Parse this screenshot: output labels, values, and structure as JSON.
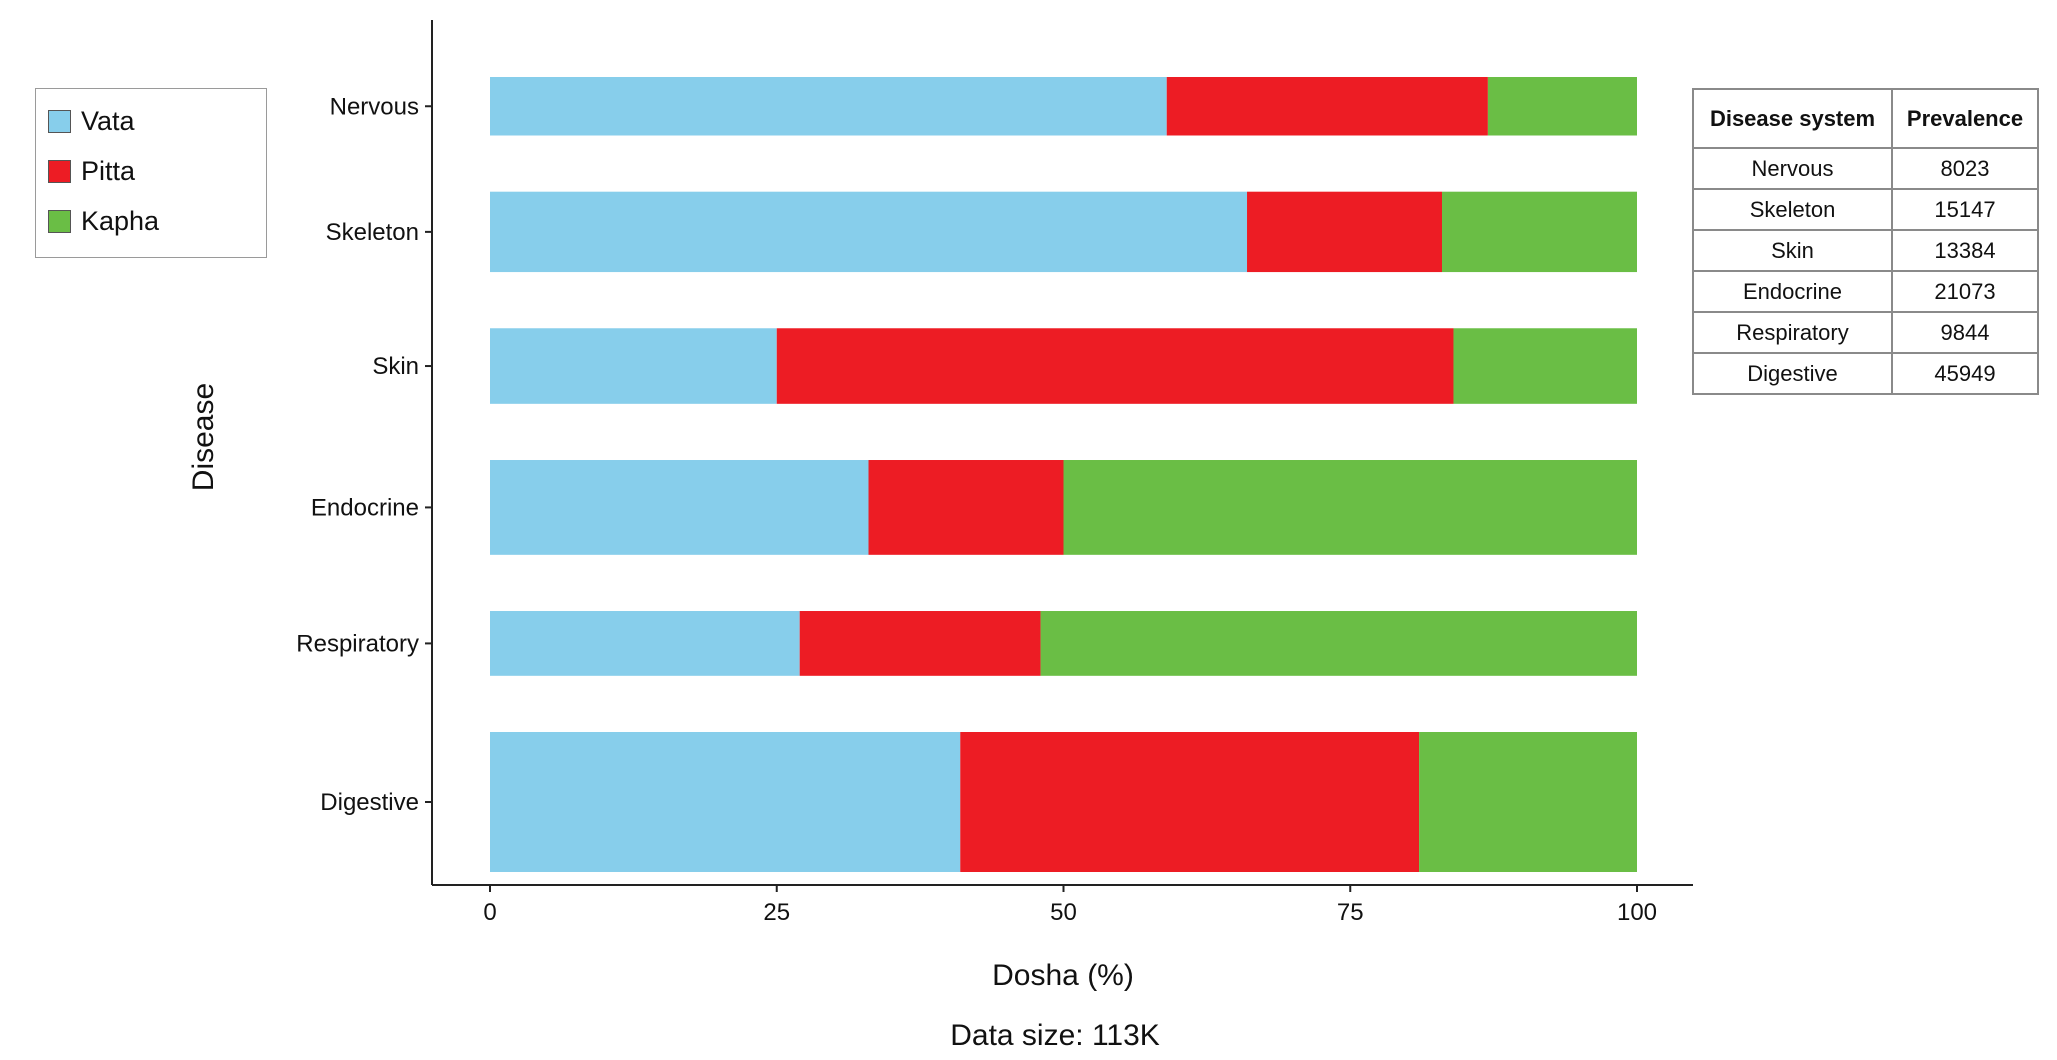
{
  "chart_data": {
    "type": "bar",
    "orientation": "horizontal",
    "stacked": true,
    "categories": [
      "Nervous",
      "Skeleton",
      "Skin",
      "Endocrine",
      "Respiratory",
      "Digestive"
    ],
    "series": [
      {
        "name": "Vata",
        "color": "#87ceeb",
        "values": [
          59,
          66,
          25,
          33,
          27,
          41
        ]
      },
      {
        "name": "Pitta",
        "color": "#ed1c24",
        "values": [
          28,
          17,
          59,
          17,
          21,
          40
        ]
      },
      {
        "name": "Kapha",
        "color": "#6abe45",
        "values": [
          13,
          17,
          16,
          50,
          52,
          19
        ]
      }
    ],
    "xlabel": "Dosha (%)",
    "ylabel": "Disease",
    "xlim": [
      0,
      100
    ],
    "xticks": [
      0,
      25,
      50,
      75,
      100
    ],
    "bar_weight": [
      8023,
      15147,
      13384,
      21073,
      9844,
      45949
    ],
    "caption": "Data size: 113K",
    "legend_position": "top-left",
    "grid": false
  },
  "table": {
    "headers": [
      "Disease system",
      "Prevalence"
    ],
    "rows": [
      [
        "Nervous",
        "8023"
      ],
      [
        "Skeleton",
        "15147"
      ],
      [
        "Skin",
        "13384"
      ],
      [
        "Endocrine",
        "21073"
      ],
      [
        "Respiratory",
        "9844"
      ],
      [
        "Digestive",
        "45949"
      ]
    ]
  }
}
